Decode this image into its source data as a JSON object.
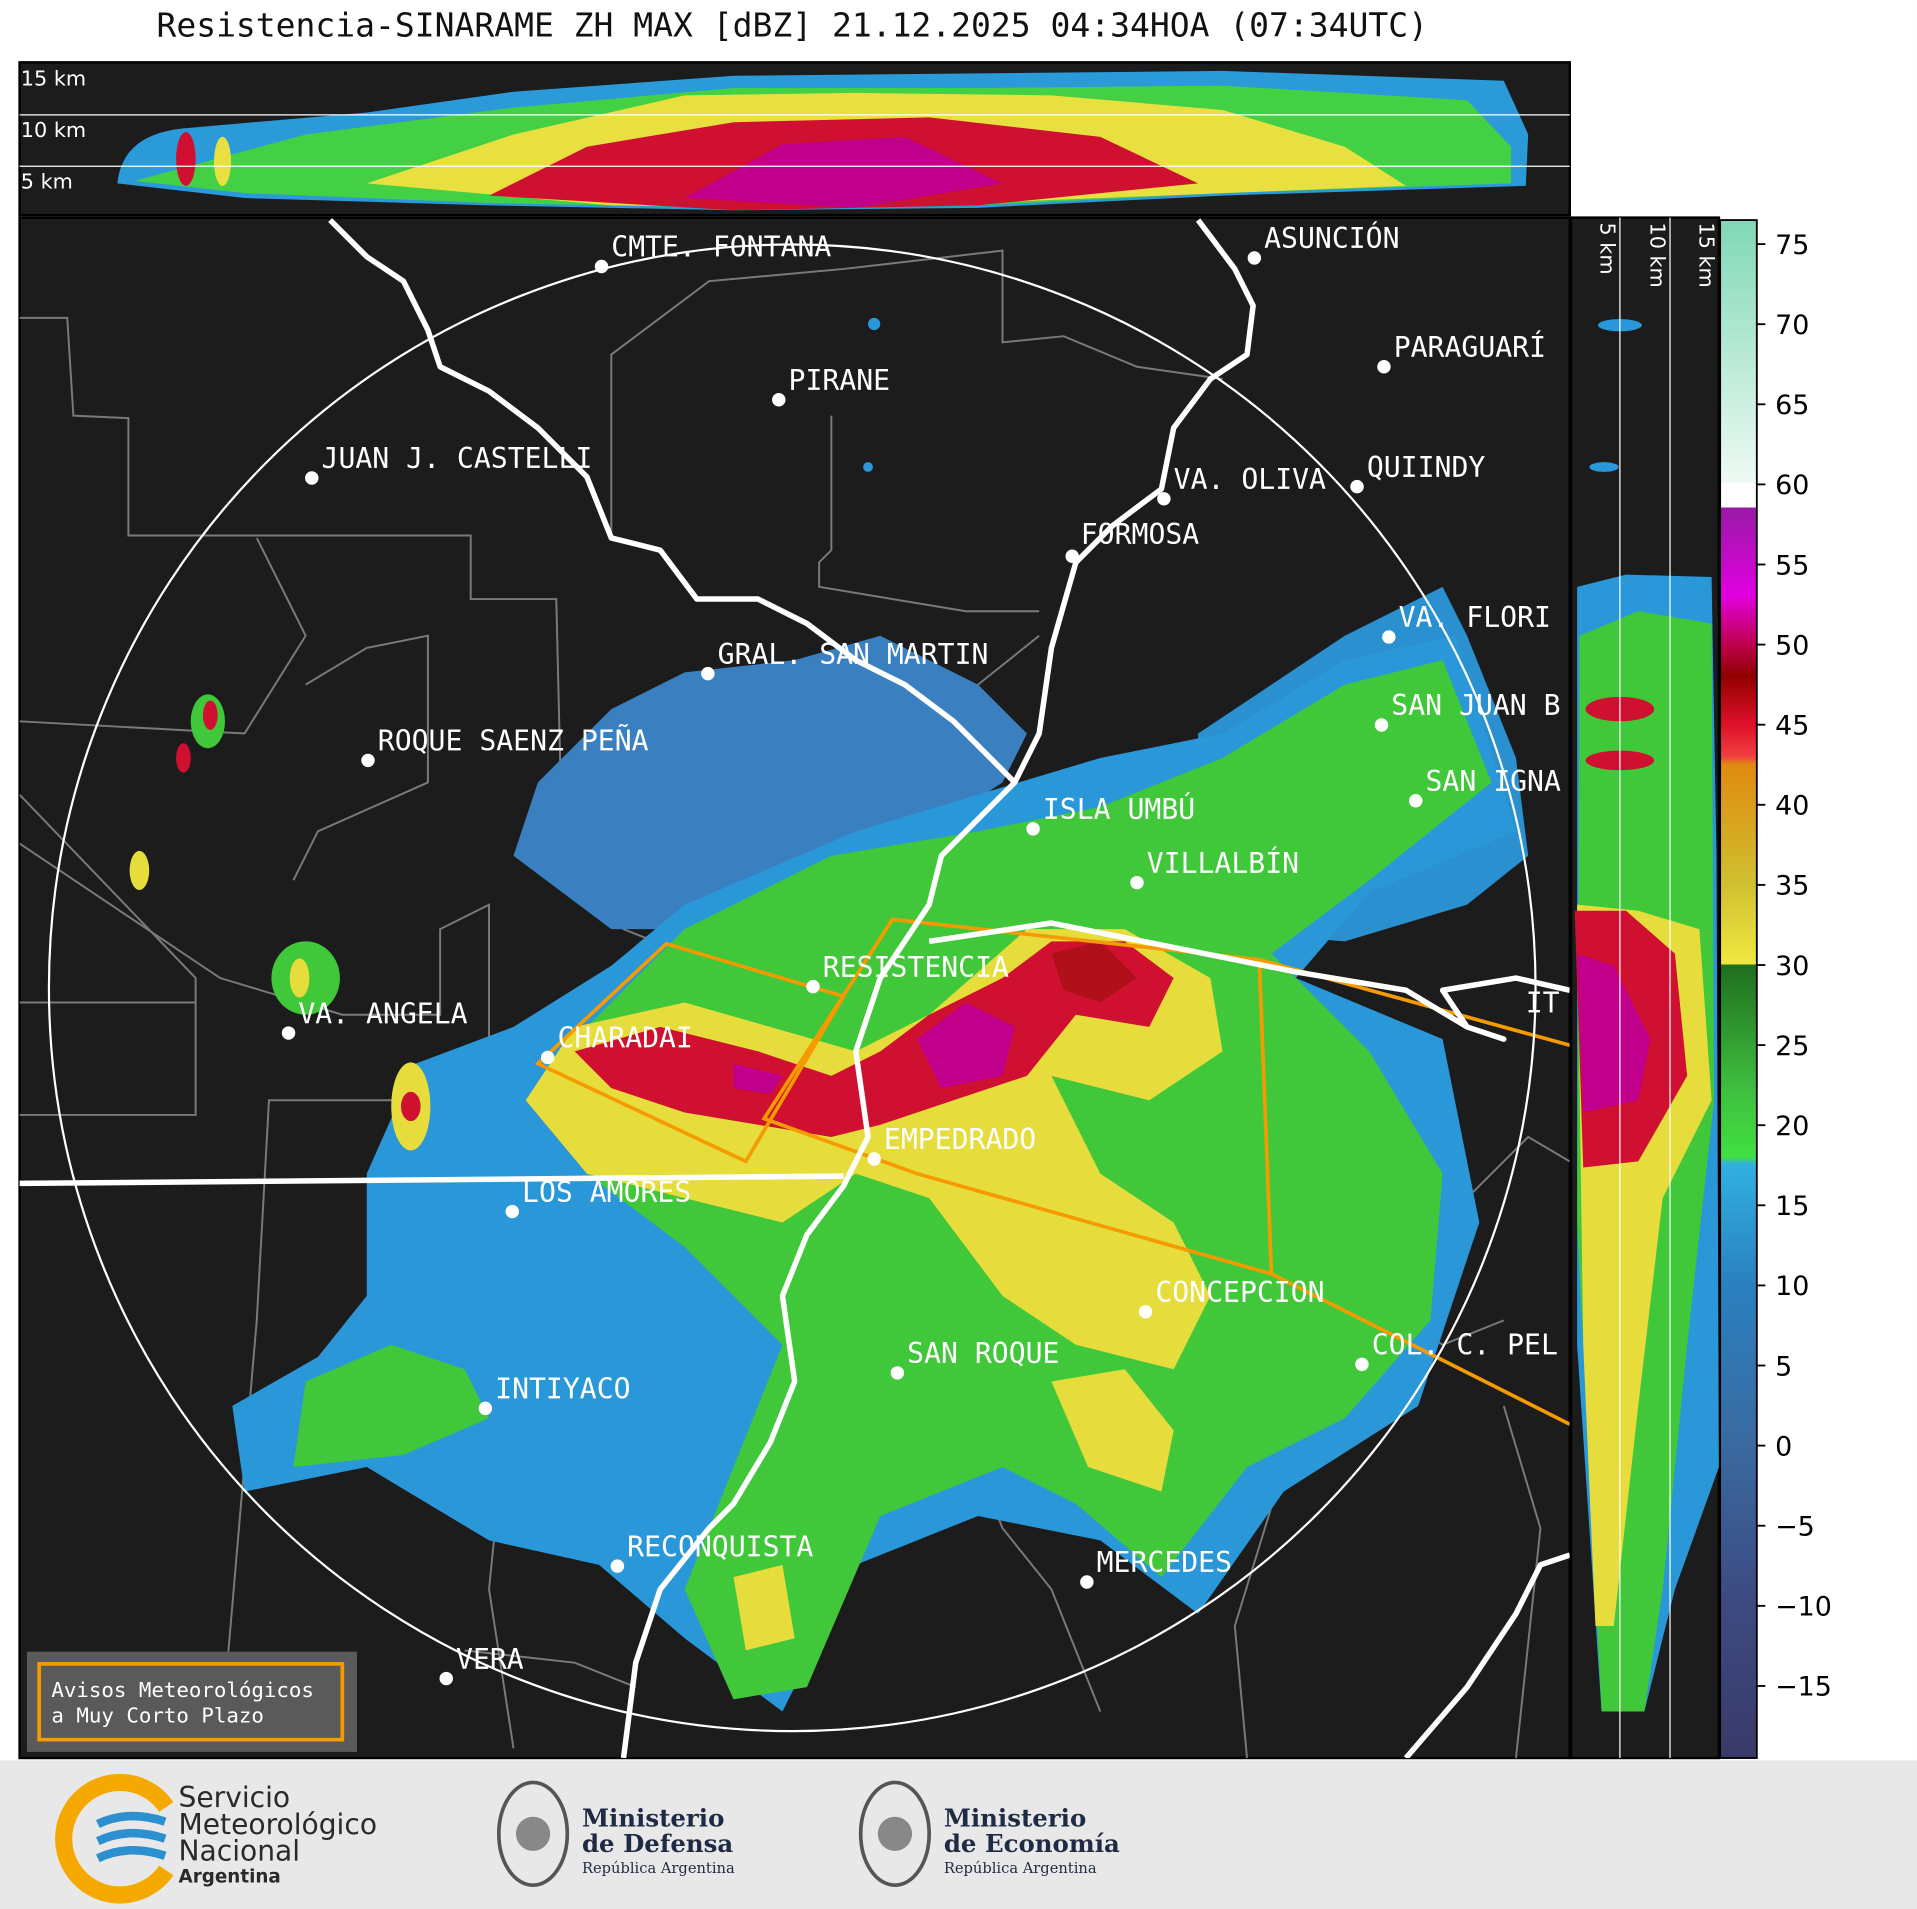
{
  "header": {
    "title": "Resistencia-SINARAME ZH MAX [dBZ] 21.12.2025 04:34HOA (07:34UTC)"
  },
  "top_profile": {
    "labels": [
      "15 km",
      "10 km",
      "5 km"
    ]
  },
  "side_profile": {
    "labels": [
      "5 km",
      "10 km",
      "15 km"
    ]
  },
  "map": {
    "places": [
      "CMTE. FONTANA",
      "PIRANE",
      "JUAN J. CASTELLI",
      "ASUNCIÓN",
      "PARAGUARÍ",
      "QUIINDY",
      "VA. OLIVA",
      "FORMOSA",
      "VA. FLORI",
      "GRAL. SAN MARTIN",
      "ROQUE SAENZ PEÑA",
      "SAN JUAN B",
      "SAN IGNA",
      "ISLA UMBÚ",
      "VILLALBÍN",
      "RESISTENCIA",
      "IT",
      "VA. ANGELA",
      "CHARADAI",
      "EMPEDRADO",
      "LOS AMORES",
      "CONCEPCION",
      "COL. C. PEL",
      "SAN ROQUE",
      "INTIYACO",
      "RECONQUISTA",
      "MERCEDES",
      "VERA"
    ]
  },
  "colorbar": {
    "range": [
      -19.5,
      76.5
    ],
    "ticks": [
      {
        "value": -15,
        "label": "−15"
      },
      {
        "value": -10,
        "label": "−10"
      },
      {
        "value": -5,
        "label": "−5"
      },
      0,
      5,
      10,
      15,
      20,
      25,
      30,
      35,
      40,
      45,
      50,
      55,
      60,
      65,
      70,
      75
    ]
  },
  "notice": {
    "lines": [
      "Avisos Meteorológicos",
      "a Muy Corto Plazo"
    ]
  },
  "footer": {
    "logos": [
      {
        "lines": [
          "Servicio",
          "Meteorológico",
          "Nacional",
          "Argentina"
        ]
      },
      {
        "lines": [
          "Ministerio",
          "de Defensa",
          "República Argentina"
        ]
      },
      {
        "lines": [
          "Ministerio",
          "de Economía",
          "República Argentina"
        ]
      }
    ]
  }
}
